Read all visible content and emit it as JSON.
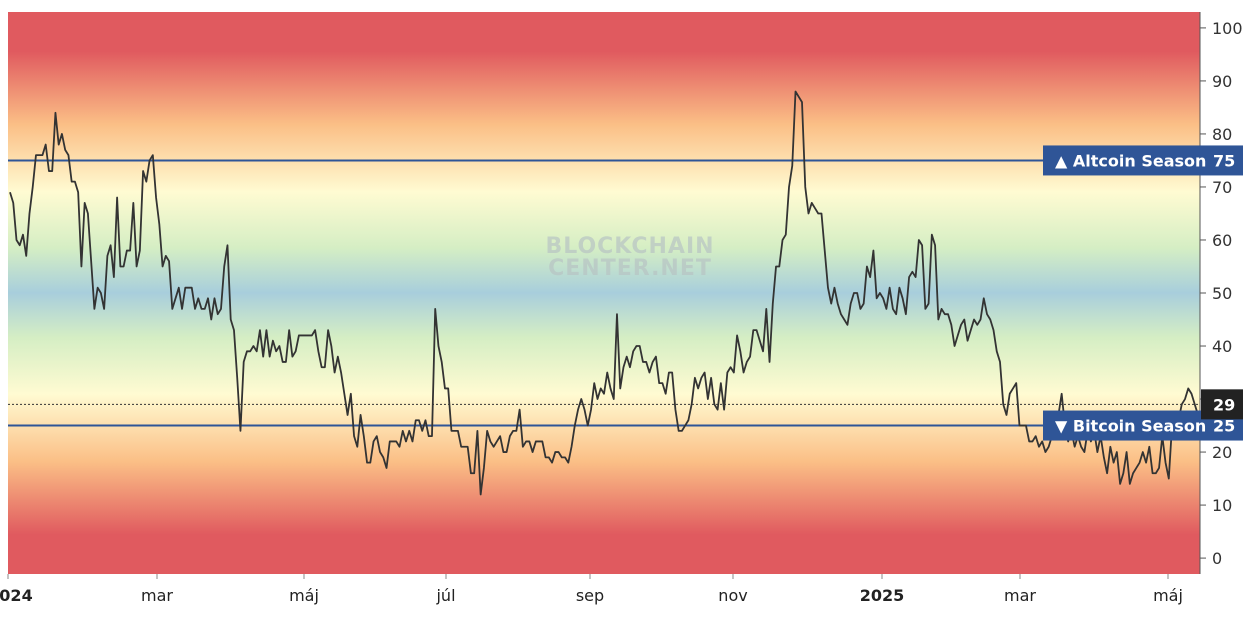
{
  "watermark": [
    "BLOCKCHAIN",
    "CENTER.NET"
  ],
  "colors": {
    "red": "#e05a5f",
    "orange": "#fbbf86",
    "yellow": "#fffbd2",
    "green": "#d5eec4",
    "blue": "#a8cedc",
    "line": "#333333",
    "band_line": "#2f5597",
    "label_bg": "#2f5597",
    "current_bg": "#222222"
  },
  "chart_data": {
    "type": "line",
    "title": "",
    "xlabel": "",
    "ylabel": "",
    "ylim": [
      -3,
      103
    ],
    "y_ticks": [
      0,
      10,
      20,
      30,
      40,
      50,
      60,
      70,
      80,
      90,
      100
    ],
    "x_ticks": [
      {
        "label": "024",
        "bold": true
      },
      {
        "label": "mar",
        "bold": false
      },
      {
        "label": "máj",
        "bold": false
      },
      {
        "label": "júl",
        "bold": false
      },
      {
        "label": "sep",
        "bold": false
      },
      {
        "label": "nov",
        "bold": false
      },
      {
        "label": "2025",
        "bold": true
      },
      {
        "label": "mar",
        "bold": false
      },
      {
        "label": "máj",
        "bold": false
      }
    ],
    "thresholds": [
      {
        "name": "Altcoin Season",
        "value": 75,
        "arrow": "▲"
      },
      {
        "name": "Bitcoin Season",
        "value": 25,
        "arrow": "▼"
      }
    ],
    "current_value": 29,
    "series": [
      {
        "x_start": 0,
        "x_step": 1,
        "values": [
          69,
          67,
          60,
          59,
          61,
          57,
          65,
          70,
          76,
          76,
          76,
          78,
          73,
          73,
          84,
          78,
          80,
          77,
          76,
          71,
          71,
          69,
          55,
          67,
          65,
          56,
          47,
          51,
          50,
          47,
          57,
          59,
          53,
          68,
          55,
          55,
          58,
          58,
          67,
          55,
          58,
          73,
          71,
          75,
          76,
          68,
          63,
          55,
          57,
          56,
          47,
          49,
          51,
          47,
          51,
          51,
          51,
          47,
          49,
          47,
          47,
          49,
          45,
          49,
          46,
          47,
          55,
          59,
          45,
          43,
          34,
          24,
          37,
          39,
          39,
          40,
          39,
          43,
          38,
          43,
          38,
          41,
          39,
          40,
          37,
          37,
          43,
          38,
          39,
          42,
          42,
          42,
          42,
          42,
          43,
          39,
          36,
          36,
          43,
          40,
          35,
          38,
          35,
          31,
          27,
          31,
          23,
          21,
          27,
          23,
          18,
          18,
          22,
          23,
          20,
          19,
          17,
          22,
          22,
          22,
          21,
          24,
          22,
          24,
          22,
          26,
          26,
          24,
          26,
          23,
          23,
          47,
          40,
          37,
          32,
          32,
          24,
          24,
          24,
          21,
          21,
          21,
          16,
          16,
          24,
          12,
          17,
          24,
          22,
          21,
          22,
          23,
          20,
          20,
          23,
          24,
          24,
          28,
          21,
          22,
          22,
          20,
          22,
          22,
          22,
          19,
          19,
          18,
          20,
          20,
          19,
          19,
          18,
          21,
          25,
          28,
          30,
          28,
          25,
          28,
          33,
          30,
          32,
          31,
          35,
          32,
          30,
          46,
          32,
          36,
          38,
          36,
          39,
          40,
          40,
          37,
          37,
          35,
          37,
          38,
          33,
          33,
          31,
          35,
          35,
          28,
          24,
          24,
          25,
          26,
          29,
          34,
          32,
          34,
          35,
          30,
          34,
          29,
          28,
          33,
          28,
          35,
          36,
          35,
          42,
          39,
          35,
          37,
          38,
          43,
          43,
          41,
          39,
          47,
          37,
          48,
          55,
          55,
          60,
          61,
          70,
          74,
          88,
          87,
          86,
          70,
          65,
          67,
          66,
          65,
          65,
          58,
          51,
          48,
          51,
          48,
          46,
          45,
          44,
          48,
          50,
          50,
          47,
          48,
          55,
          53,
          58,
          49,
          50,
          49,
          47,
          51,
          47,
          46,
          51,
          49,
          46,
          53,
          54,
          53,
          60,
          59,
          47,
          48,
          61,
          59,
          45,
          47,
          46,
          46,
          44,
          40,
          42,
          44,
          45,
          41,
          43,
          45,
          44,
          45,
          49,
          46,
          45,
          43,
          39,
          37,
          29,
          27,
          31,
          32,
          33,
          25,
          25,
          25,
          22,
          22,
          23,
          21,
          22,
          20,
          21,
          23,
          24,
          27,
          31,
          25,
          22,
          24,
          21,
          23,
          21,
          20,
          24,
          22,
          24,
          20,
          23,
          19,
          16,
          21,
          18,
          20,
          14,
          16,
          20,
          14,
          16,
          17,
          18,
          20,
          18,
          21,
          16,
          16,
          17,
          23,
          18,
          15,
          25,
          25,
          26,
          29,
          30,
          32,
          31,
          29,
          27
        ]
      }
    ]
  }
}
